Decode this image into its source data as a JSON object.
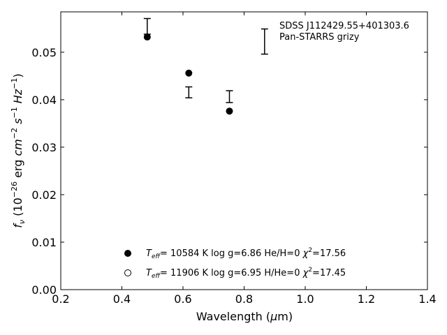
{
  "chart_data": {
    "type": "scatter",
    "xlabel": "Wavelength (μm)",
    "ylabel": "f_ν (10^-26 erg cm^-2 s^-1 Hz^-1)",
    "xlim": [
      0.2,
      1.4
    ],
    "ylim": [
      0.0,
      0.0585
    ],
    "xticks": [
      0.2,
      0.4,
      0.6,
      0.8,
      1.0,
      1.2,
      1.4
    ],
    "xtick_labels": [
      "0.2",
      "0.4",
      "0.6",
      "0.8",
      "1.0",
      "1.2",
      "1.4"
    ],
    "yticks": [
      0.0,
      0.01,
      0.02,
      0.03,
      0.04,
      0.05
    ],
    "ytick_labels": [
      "0.00",
      "0.01",
      "0.02",
      "0.03",
      "0.04",
      "0.05"
    ],
    "grid": false,
    "annotation": {
      "line1": "SDSS J112429.55+401303.6",
      "line2": "Pan-STARRS grizy",
      "position": "top-right"
    },
    "observed": {
      "x": [
        0.483,
        0.619,
        0.752,
        0.867
      ],
      "y_low": [
        0.0538,
        0.0404,
        0.0394,
        0.0496
      ],
      "y_high": [
        0.0571,
        0.0427,
        0.0419,
        0.0549
      ]
    },
    "series": [
      {
        "name": "Teff= 10584 K  log g=6.86  He/H=0  χ²=17.56",
        "marker": "filled-circle",
        "x": [
          0.483,
          0.619,
          0.752
        ],
        "y": [
          0.0532,
          0.0456,
          0.0376
        ]
      },
      {
        "name": "Teff= 11906 K  log g=6.95  H/He=0  χ²=17.45",
        "marker": "open-circle",
        "x": [],
        "y": []
      }
    ],
    "legend_placement": "bottom-center",
    "legend": [
      {
        "teff": "10584",
        "logg": "6.86",
        "comp_label": "He/H=0",
        "chi2": "17.56",
        "marker": "filled"
      },
      {
        "teff": "11906",
        "logg": "6.95",
        "comp_label": "H/He=0",
        "chi2": "17.45",
        "marker": "open"
      }
    ]
  }
}
